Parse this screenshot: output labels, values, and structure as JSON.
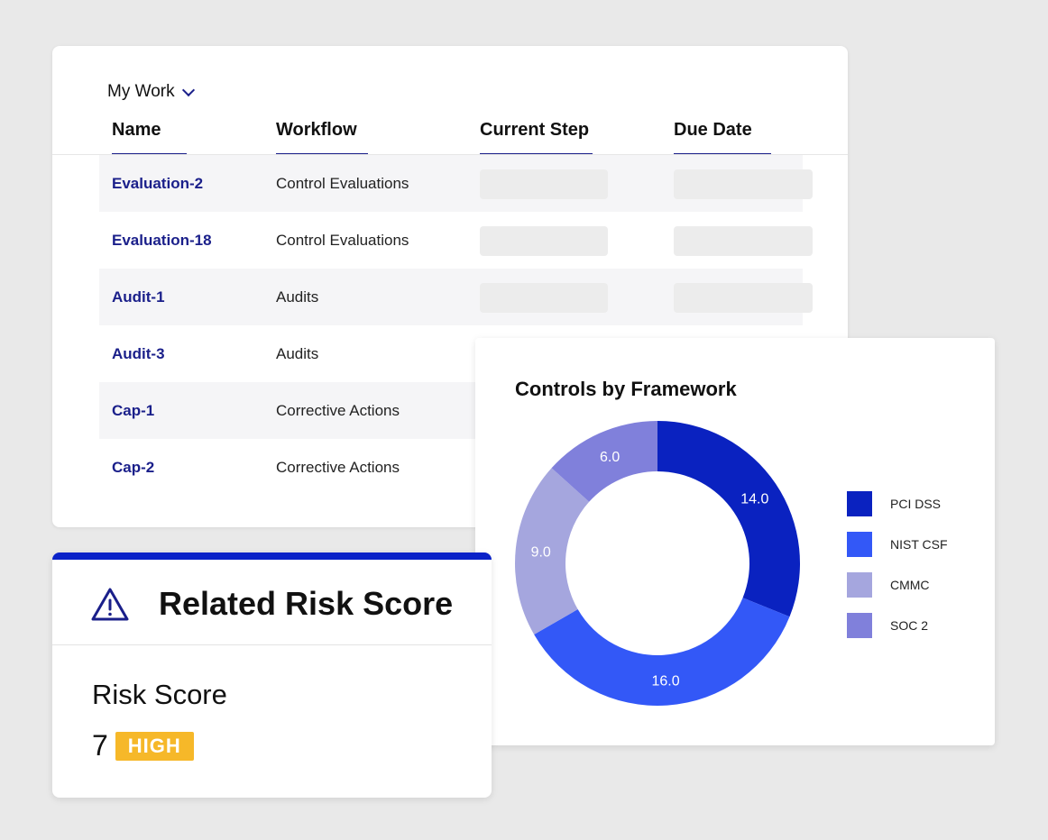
{
  "my_work": {
    "title": "My Work",
    "columns": [
      "Name",
      "Workflow",
      "Current Step",
      "Due Date"
    ],
    "rows": [
      {
        "name": "Evaluation-2",
        "workflow": "Control Evaluations"
      },
      {
        "name": "Evaluation-18",
        "workflow": "Control Evaluations"
      },
      {
        "name": "Audit-1",
        "workflow": "Audits"
      },
      {
        "name": "Audit-3",
        "workflow": "Audits"
      },
      {
        "name": "Cap-1",
        "workflow": "Corrective Actions"
      },
      {
        "name": "Cap-2",
        "workflow": "Corrective Actions"
      }
    ]
  },
  "chart_data": {
    "type": "pie",
    "variant": "donut",
    "title": "Controls by Framework",
    "categories": [
      "PCI DSS",
      "NIST CSF",
      "CMMC",
      "SOC 2"
    ],
    "values": [
      14.0,
      16.0,
      9.0,
      6.0
    ],
    "labels": [
      "14.0",
      "16.0",
      "9.0",
      "6.0"
    ],
    "colors": [
      "#0a22c0",
      "#3358f7",
      "#a5a6de",
      "#8080db"
    ],
    "legend_position": "right"
  },
  "risk": {
    "title": "Related Risk Score",
    "label": "Risk Score",
    "value": "7",
    "level": "HIGH",
    "level_color": "#f6b829",
    "icon": "warning-icon"
  }
}
